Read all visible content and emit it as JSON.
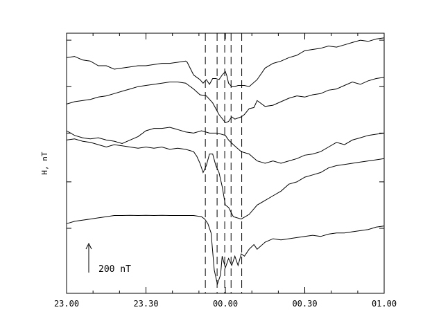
{
  "chart_data": {
    "type": "line",
    "title": "",
    "xlabel": "",
    "ylabel": "H, nT",
    "x_unit": "hours (UT) after 23:00",
    "x_range": [
      0,
      2
    ],
    "x_ticks": [
      {
        "value": 0.0,
        "label": "23.00"
      },
      {
        "value": 0.5,
        "label": "23.30"
      },
      {
        "value": 1.0,
        "label": "00.00"
      },
      {
        "value": 1.5,
        "label": "00.30"
      },
      {
        "value": 2.0,
        "label": "01.00"
      }
    ],
    "x_minor_tick_step": 0.1667,
    "y_range": [
      0,
      1120
    ],
    "y_axis_tick_labels": false,
    "y_ticks": [
      280,
      480,
      690,
      890,
      1090
    ],
    "scale_bar": {
      "label": "200 nT",
      "value": 200
    },
    "vertical_markers": {
      "style": "dashed",
      "x": [
        0.874,
        0.948,
        0.996,
        1.036,
        1.103
      ]
    },
    "series": [
      {
        "x": [
          0.0,
          0.05,
          0.1,
          0.15,
          0.2,
          0.25,
          0.3,
          0.35,
          0.4,
          0.45,
          0.5,
          0.55,
          0.6,
          0.65,
          0.7,
          0.75,
          0.76,
          0.8,
          0.82,
          0.84,
          0.86,
          0.88,
          0.9,
          0.92,
          0.94,
          0.96,
          0.98,
          1.0,
          1.01,
          1.02,
          1.04,
          1.06,
          1.08,
          1.1,
          1.12,
          1.15,
          1.2,
          1.25,
          1.3,
          1.35,
          1.4,
          1.45,
          1.5,
          1.55,
          1.6,
          1.65,
          1.7,
          1.75,
          1.8,
          1.85,
          1.9,
          1.95,
          2.0
        ],
        "y": [
          1015,
          1020,
          1005,
          1000,
          980,
          980,
          965,
          970,
          975,
          980,
          980,
          985,
          990,
          990,
          995,
          1000,
          995,
          940,
          930,
          920,
          905,
          920,
          900,
          925,
          925,
          920,
          940,
          955,
          935,
          905,
          890,
          890,
          895,
          895,
          895,
          890,
          920,
          970,
          990,
          1000,
          1015,
          1025,
          1045,
          1050,
          1055,
          1065,
          1060,
          1070,
          1080,
          1090,
          1085,
          1095,
          1100
        ]
      },
      {
        "x": [
          0.0,
          0.05,
          0.1,
          0.15,
          0.2,
          0.25,
          0.3,
          0.35,
          0.4,
          0.45,
          0.5,
          0.55,
          0.6,
          0.65,
          0.7,
          0.75,
          0.76,
          0.8,
          0.84,
          0.88,
          0.92,
          0.96,
          1.0,
          1.02,
          1.04,
          1.06,
          1.1,
          1.12,
          1.15,
          1.18,
          1.2,
          1.25,
          1.3,
          1.35,
          1.4,
          1.45,
          1.5,
          1.55,
          1.6,
          1.65,
          1.7,
          1.75,
          1.8,
          1.85,
          1.9,
          1.95,
          2.0
        ],
        "y": [
          815,
          825,
          830,
          835,
          845,
          850,
          860,
          870,
          880,
          890,
          895,
          900,
          905,
          910,
          910,
          905,
          900,
          880,
          855,
          850,
          820,
          770,
          735,
          740,
          760,
          750,
          760,
          770,
          795,
          800,
          830,
          805,
          810,
          825,
          840,
          850,
          845,
          855,
          860,
          875,
          880,
          895,
          910,
          900,
          915,
          925,
          930
        ]
      },
      {
        "x": [
          0.0,
          0.05,
          0.1,
          0.15,
          0.2,
          0.25,
          0.3,
          0.35,
          0.4,
          0.45,
          0.5,
          0.55,
          0.6,
          0.65,
          0.7,
          0.75,
          0.8,
          0.85,
          0.9,
          0.95,
          1.0,
          1.02,
          1.05,
          1.1,
          1.15,
          1.2,
          1.25,
          1.3,
          1.35,
          1.4,
          1.45,
          1.5,
          1.55,
          1.6,
          1.65,
          1.7,
          1.75,
          1.8,
          1.85,
          1.9,
          1.95,
          2.0
        ],
        "y": [
          700,
          680,
          670,
          665,
          670,
          660,
          655,
          645,
          660,
          675,
          700,
          710,
          710,
          715,
          705,
          695,
          690,
          700,
          690,
          690,
          680,
          660,
          640,
          610,
          600,
          570,
          560,
          570,
          560,
          570,
          580,
          595,
          600,
          610,
          630,
          650,
          640,
          660,
          670,
          680,
          685,
          690
        ]
      },
      {
        "x": [
          0.0,
          0.05,
          0.1,
          0.15,
          0.2,
          0.25,
          0.3,
          0.35,
          0.4,
          0.45,
          0.5,
          0.55,
          0.6,
          0.65,
          0.7,
          0.75,
          0.8,
          0.82,
          0.84,
          0.86,
          0.88,
          0.9,
          0.92,
          0.94,
          0.96,
          0.98,
          1.0,
          1.02,
          1.05,
          1.1,
          1.15,
          1.2,
          1.25,
          1.3,
          1.35,
          1.4,
          1.45,
          1.5,
          1.55,
          1.6,
          1.65,
          1.7,
          1.75,
          1.8,
          1.85,
          1.9,
          1.95,
          2.0
        ],
        "y": [
          660,
          665,
          655,
          650,
          640,
          630,
          640,
          635,
          630,
          625,
          630,
          625,
          630,
          620,
          625,
          620,
          610,
          590,
          560,
          520,
          550,
          600,
          600,
          550,
          520,
          460,
          380,
          370,
          330,
          320,
          340,
          380,
          400,
          420,
          440,
          470,
          480,
          500,
          510,
          520,
          540,
          550,
          555,
          560,
          565,
          570,
          575,
          580
        ]
      },
      {
        "x": [
          0.0,
          0.05,
          0.1,
          0.15,
          0.2,
          0.25,
          0.3,
          0.35,
          0.4,
          0.45,
          0.5,
          0.55,
          0.6,
          0.65,
          0.7,
          0.75,
          0.8,
          0.85,
          0.87,
          0.89,
          0.91,
          0.93,
          0.95,
          0.97,
          0.98,
          1.0,
          1.02,
          1.04,
          1.06,
          1.08,
          1.1,
          1.12,
          1.15,
          1.18,
          1.2,
          1.25,
          1.3,
          1.35,
          1.4,
          1.45,
          1.5,
          1.55,
          1.6,
          1.65,
          1.7,
          1.75,
          1.8,
          1.85,
          1.9,
          1.95,
          2.0
        ],
        "y": [
          300,
          310,
          315,
          320,
          325,
          330,
          335,
          335,
          336,
          335,
          336,
          335,
          336,
          335,
          335,
          335,
          335,
          330,
          320,
          300,
          260,
          100,
          40,
          80,
          160,
          110,
          150,
          120,
          160,
          120,
          170,
          160,
          190,
          210,
          190,
          220,
          235,
          230,
          235,
          240,
          245,
          250,
          245,
          255,
          260,
          260,
          265,
          270,
          275,
          285,
          290
        ]
      }
    ]
  }
}
